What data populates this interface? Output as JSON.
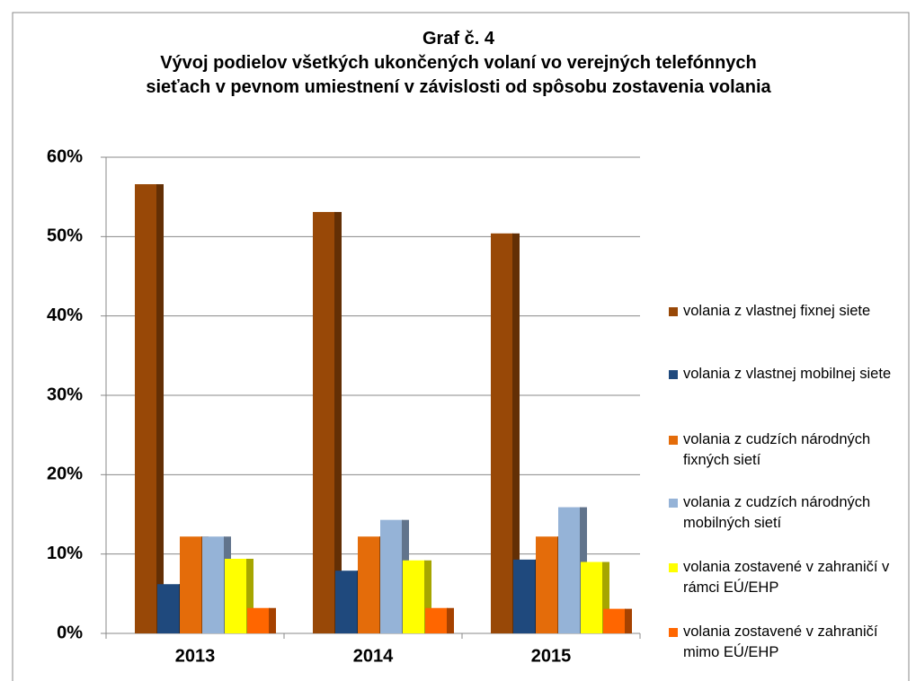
{
  "chart_data": {
    "type": "bar",
    "title": "Graf č. 4",
    "subtitle": "Vývoj podielov všetkých ukončených volaní vo verejných telefónnych sieťach v pevnom umiestnení v závislosti od spôsobu zostavenia volania",
    "categories": [
      "2013",
      "2014",
      "2015"
    ],
    "series": [
      {
        "name": "volania z vlastnej fixnej siete",
        "color": "#984807",
        "values": [
          56.6,
          53.1,
          50.4
        ]
      },
      {
        "name": "volania z vlastnej mobilnej siete",
        "color": "#1f497d",
        "values": [
          6.2,
          7.9,
          9.3
        ]
      },
      {
        "name": "volania z cudzích národných fixných sietí",
        "color": "#e46c0a",
        "values": [
          12.2,
          12.2,
          12.2
        ]
      },
      {
        "name": "volania z cudzích národných mobilných sietí",
        "color": "#95b3d7",
        "values": [
          12.2,
          14.3,
          15.9
        ]
      },
      {
        "name": "volania zostavené v zahraničí v rámci EÚ/EHP",
        "color": "#ffff00",
        "values": [
          9.4,
          9.2,
          9.0
        ]
      },
      {
        "name": "volania zostavené v zahraničí mimo EÚ/EHP",
        "color": "#ff6600",
        "values": [
          3.2,
          3.2,
          3.1
        ]
      }
    ],
    "ylim": [
      0,
      60
    ],
    "yticks": [
      {
        "value": 0,
        "label": "0%"
      },
      {
        "value": 10,
        "label": "10%"
      },
      {
        "value": 20,
        "label": "20%"
      },
      {
        "value": 30,
        "label": "30%"
      },
      {
        "value": 40,
        "label": "40%"
      },
      {
        "value": 50,
        "label": "50%"
      },
      {
        "value": 60,
        "label": "60%"
      }
    ],
    "grid": true,
    "legend": "right"
  }
}
